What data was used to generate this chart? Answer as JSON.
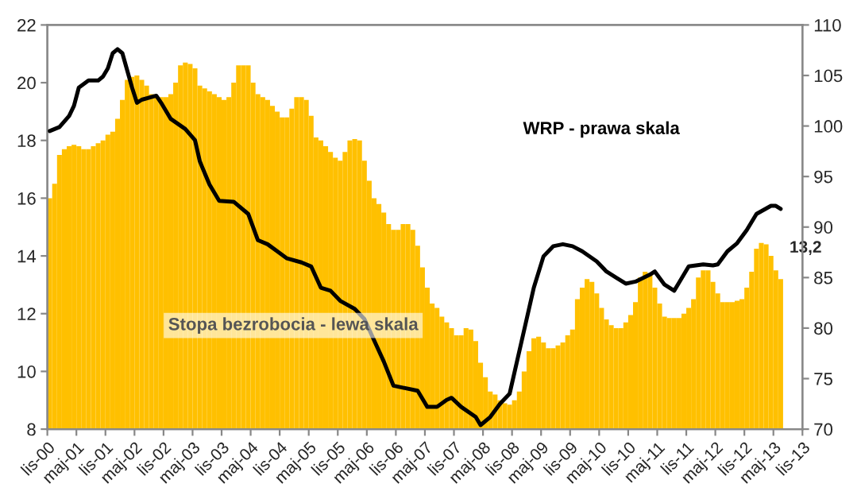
{
  "chart_data": {
    "type": "bar",
    "x": [
      "2000-11",
      "2000-12",
      "2001-01",
      "2001-02",
      "2001-03",
      "2001-04",
      "2001-05",
      "2001-06",
      "2001-07",
      "2001-08",
      "2001-09",
      "2001-10",
      "2001-11",
      "2001-12",
      "2002-01",
      "2002-02",
      "2002-03",
      "2002-04",
      "2002-05",
      "2002-06",
      "2002-07",
      "2002-08",
      "2002-09",
      "2002-10",
      "2002-11",
      "2002-12",
      "2003-01",
      "2003-02",
      "2003-03",
      "2003-04",
      "2003-05",
      "2003-06",
      "2003-07",
      "2003-08",
      "2003-09",
      "2003-10",
      "2003-11",
      "2003-12",
      "2004-01",
      "2004-02",
      "2004-03",
      "2004-04",
      "2004-05",
      "2004-06",
      "2004-07",
      "2004-08",
      "2004-09",
      "2004-10",
      "2004-11",
      "2004-12",
      "2005-01",
      "2005-02",
      "2005-03",
      "2005-04",
      "2005-05",
      "2005-06",
      "2005-07",
      "2005-08",
      "2005-09",
      "2005-10",
      "2005-11",
      "2005-12",
      "2006-01",
      "2006-02",
      "2006-03",
      "2006-04",
      "2006-05",
      "2006-06",
      "2006-07",
      "2006-08",
      "2006-09",
      "2006-10",
      "2006-11",
      "2006-12",
      "2007-01",
      "2007-02",
      "2007-03",
      "2007-04",
      "2007-05",
      "2007-06",
      "2007-07",
      "2007-08",
      "2007-09",
      "2007-10",
      "2007-11",
      "2007-12",
      "2008-01",
      "2008-02",
      "2008-03",
      "2008-04",
      "2008-05",
      "2008-06",
      "2008-07",
      "2008-08",
      "2008-09",
      "2008-10",
      "2008-11",
      "2008-12",
      "2009-01",
      "2009-02",
      "2009-03",
      "2009-04",
      "2009-05",
      "2009-06",
      "2009-07",
      "2009-08",
      "2009-09",
      "2009-10",
      "2009-11",
      "2009-12",
      "2010-01",
      "2010-02",
      "2010-03",
      "2010-04",
      "2010-05",
      "2010-06",
      "2010-07",
      "2010-08",
      "2010-09",
      "2010-10",
      "2010-11",
      "2010-12",
      "2011-01",
      "2011-02",
      "2011-03",
      "2011-04",
      "2011-05",
      "2011-06",
      "2011-07",
      "2011-08",
      "2011-09",
      "2011-10",
      "2011-11",
      "2011-12",
      "2012-01",
      "2012-02",
      "2012-03",
      "2012-04",
      "2012-05",
      "2012-06",
      "2012-07",
      "2012-08",
      "2012-09",
      "2012-10",
      "2012-11",
      "2012-12",
      "2013-01",
      "2013-02",
      "2013-03",
      "2013-04",
      "2013-05",
      "2013-06"
    ],
    "series": [
      {
        "name": "Stopa bezrobocia - lewa skala",
        "color": "#ffc000",
        "values": [
          16.0,
          16.5,
          17.5,
          17.7,
          17.8,
          17.85,
          17.8,
          17.7,
          17.7,
          17.8,
          17.9,
          18.0,
          18.2,
          18.3,
          18.75,
          19.4,
          20.1,
          20.2,
          20.25,
          20.1,
          19.9,
          19.6,
          19.5,
          19.5,
          19.5,
          19.6,
          20.0,
          20.6,
          20.7,
          20.65,
          20.5,
          19.9,
          19.8,
          19.7,
          19.6,
          19.5,
          19.4,
          19.5,
          20.0,
          20.6,
          20.6,
          20.6,
          20.0,
          19.6,
          19.5,
          19.4,
          19.2,
          19.0,
          18.8,
          18.8,
          19.1,
          19.5,
          19.5,
          19.4,
          18.85,
          18.1,
          18.0,
          17.8,
          17.6,
          17.4,
          17.3,
          17.6,
          18.0,
          18.05,
          18.0,
          17.3,
          16.6,
          16.0,
          15.8,
          15.5,
          15.1,
          14.9,
          14.9,
          15.1,
          15.1,
          14.9,
          14.35,
          13.6,
          12.9,
          12.35,
          12.2,
          11.9,
          11.7,
          11.5,
          11.25,
          11.25,
          11.5,
          11.45,
          11.05,
          10.3,
          9.8,
          9.3,
          9.2,
          9.0,
          8.9,
          8.85,
          9.0,
          9.3,
          10.0,
          10.7,
          11.15,
          11.2,
          11.0,
          10.8,
          10.8,
          10.9,
          11.0,
          11.25,
          11.45,
          12.5,
          12.9,
          13.2,
          13.1,
          12.7,
          12.2,
          11.8,
          11.6,
          11.5,
          11.5,
          11.7,
          11.95,
          12.4,
          13.25,
          13.45,
          13.4,
          12.9,
          12.35,
          11.9,
          11.85,
          11.85,
          11.85,
          12.0,
          12.2,
          12.5,
          13.25,
          13.5,
          13.5,
          13.1,
          12.7,
          12.4,
          12.4,
          12.4,
          12.45,
          12.5,
          12.9,
          13.45,
          14.25,
          14.45,
          14.4,
          14.0,
          13.5,
          13.2
        ]
      },
      {
        "name": "WRP - prawa skala",
        "type": "line",
        "axis": "y2",
        "color": "#000000",
        "x": [
          "2000-11",
          "2001-01",
          "2001-03",
          "2001-04",
          "2001-05",
          "2001-07",
          "2001-09",
          "2001-10",
          "2001-11",
          "2001-12",
          "2002-01",
          "2002-02",
          "2002-04",
          "2002-05",
          "2002-06",
          "2002-09",
          "2002-10",
          "2002-12",
          "2003-03",
          "2003-05",
          "2003-06",
          "2003-08",
          "2003-10",
          "2004-01",
          "2004-04",
          "2004-06",
          "2004-08",
          "2004-10",
          "2004-12",
          "2005-03",
          "2005-05",
          "2005-07",
          "2005-09",
          "2005-11",
          "2006-02",
          "2006-04",
          "2006-06",
          "2006-08",
          "2006-10",
          "2007-03",
          "2007-05",
          "2007-07",
          "2007-09",
          "2007-10",
          "2007-12",
          "2008-03",
          "2008-04",
          "2008-06",
          "2008-08",
          "2008-10",
          "2008-11",
          "2009-01",
          "2009-03",
          "2009-05",
          "2009-07",
          "2009-09",
          "2009-11",
          "2010-01",
          "2010-04",
          "2010-06",
          "2010-08",
          "2010-10",
          "2010-12",
          "2011-03",
          "2011-04",
          "2011-06",
          "2011-08",
          "2011-09",
          "2011-11",
          "2012-02",
          "2012-04",
          "2012-05",
          "2012-07",
          "2012-09",
          "2012-11",
          "2013-01",
          "2013-04",
          "2013-05",
          "2013-06"
        ],
        "values": [
          99.5,
          99.9,
          101.0,
          102.0,
          103.8,
          104.5,
          104.5,
          104.9,
          105.7,
          107.2,
          107.6,
          107.2,
          103.8,
          102.3,
          102.6,
          103.0,
          102.3,
          100.7,
          99.7,
          98.6,
          96.5,
          94.2,
          92.6,
          92.5,
          91.3,
          88.7,
          88.3,
          87.6,
          86.9,
          86.5,
          86.1,
          84.0,
          83.7,
          82.7,
          81.9,
          80.9,
          78.8,
          76.7,
          74.3,
          73.8,
          72.2,
          72.2,
          72.9,
          73.1,
          72.2,
          71.2,
          70.4,
          71.2,
          72.5,
          73.5,
          75.6,
          79.8,
          84.0,
          87.1,
          88.1,
          88.3,
          88.1,
          87.6,
          86.6,
          85.6,
          85.0,
          84.4,
          84.6,
          85.3,
          85.6,
          84.3,
          83.7,
          84.5,
          86.1,
          86.3,
          86.2,
          86.3,
          87.6,
          88.4,
          89.7,
          91.3,
          92.1,
          92.1,
          91.8
        ]
      }
    ],
    "xlim": [
      "2000-11",
      "2013-11"
    ],
    "xticks": [
      {
        "value": "2000-11",
        "label": "lis-00"
      },
      {
        "value": "2001-05",
        "label": "maj-01"
      },
      {
        "value": "2001-11",
        "label": "lis-01"
      },
      {
        "value": "2002-05",
        "label": "maj-02"
      },
      {
        "value": "2002-11",
        "label": "lis-02"
      },
      {
        "value": "2003-05",
        "label": "maj-03"
      },
      {
        "value": "2003-11",
        "label": "lis-03"
      },
      {
        "value": "2004-05",
        "label": "maj-04"
      },
      {
        "value": "2004-11",
        "label": "lis-04"
      },
      {
        "value": "2005-05",
        "label": "maj-05"
      },
      {
        "value": "2005-11",
        "label": "lis-05"
      },
      {
        "value": "2006-05",
        "label": "maj-06"
      },
      {
        "value": "2006-11",
        "label": "lis-06"
      },
      {
        "value": "2007-05",
        "label": "maj-07"
      },
      {
        "value": "2007-11",
        "label": "lis-07"
      },
      {
        "value": "2008-05",
        "label": "maj-08"
      },
      {
        "value": "2008-11",
        "label": "lis-08"
      },
      {
        "value": "2009-05",
        "label": "maj-09"
      },
      {
        "value": "2009-11",
        "label": "lis-09"
      },
      {
        "value": "2010-05",
        "label": "maj-10"
      },
      {
        "value": "2010-11",
        "label": "lis-10"
      },
      {
        "value": "2011-05",
        "label": "maj-11"
      },
      {
        "value": "2011-11",
        "label": "lis-11"
      },
      {
        "value": "2012-05",
        "label": "maj-12"
      },
      {
        "value": "2012-11",
        "label": "lis-12"
      },
      {
        "value": "2013-05",
        "label": "maj-13"
      },
      {
        "value": "2013-11",
        "label": "lis-13"
      }
    ],
    "ylim": [
      8,
      22
    ],
    "yticks": [
      8,
      10,
      12,
      14,
      16,
      18,
      20,
      22
    ],
    "y2lim": [
      70,
      110
    ],
    "y2ticks": [
      70,
      75,
      80,
      85,
      90,
      95,
      100,
      105,
      110
    ],
    "annotations": [
      {
        "text": "13,2",
        "x": "2013-06",
        "y": 13.2
      }
    ],
    "grid": false,
    "legend": false
  }
}
